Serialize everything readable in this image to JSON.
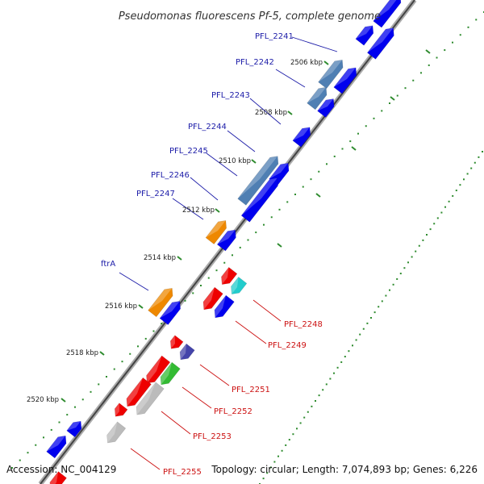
{
  "title": "Pseudomonas fluorescens Pf-5, complete genome",
  "footer": {
    "accession": "Accession: NC_004129",
    "summary": "Topology: circular; Length: 7,074,893 bp; Genes: 6,226"
  },
  "colors": {
    "forward_cds": "#0000ee",
    "reverse_cds": "#ee0000",
    "forward_label": "#1c1ca8",
    "reverse_label": "#cc1111",
    "highlight_blue": "#4f7fb3",
    "orange": "#ee8800",
    "cyan": "#22cccc",
    "green": "#33bb33",
    "purple": "#4444aa",
    "gray": "#bbbbbb",
    "tick": "#2e8b2e"
  },
  "ticks": [
    "2506 kbp",
    "2508 kbp",
    "2510 kbp",
    "2512 kbp",
    "2514 kbp",
    "2516 kbp",
    "2518 kbp",
    "2520 kbp"
  ],
  "forward_labels": [
    "PFL_2241",
    "PFL_2242",
    "PFL_2243",
    "PFL_2244",
    "PFL_2245",
    "PFL_2246",
    "PFL_2247",
    "ftrA"
  ],
  "reverse_labels": [
    "PFL_2248",
    "PFL_2249",
    "PFL_2251",
    "PFL_2252",
    "PFL_2253",
    "PFL_2255"
  ]
}
